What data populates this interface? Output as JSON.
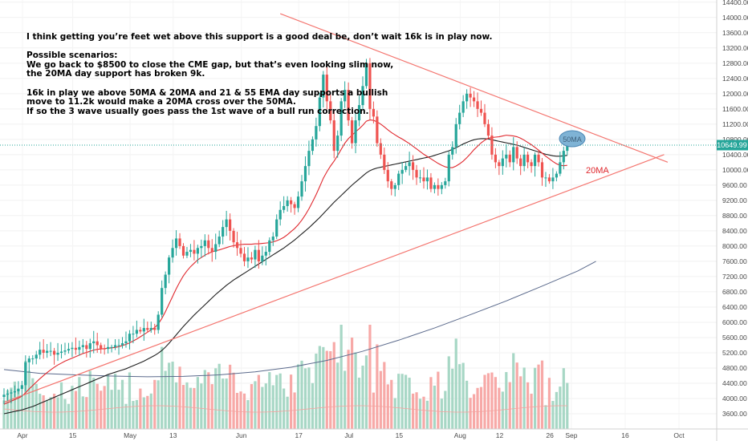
{
  "annotation": {
    "line1": "I think getting you’re feet wet above this support is a good deal be, don’t wait 16k is in play now.",
    "line2": "Possible scenarios:",
    "line3": "We go back to $8500 to close the CME gap, but that’s even looking slim now,",
    "line4": "the 20MA day support has broken 9k.",
    "line5": "16k in play we above 50MA & 20MA and 21 & 55 EMA day supports a bullish",
    "line6": "move to 11.2k would make a 20MA cross over the 50MA.",
    "line7": "If so the 3 wave usually goes pass the 1st wave of a bull run correction."
  },
  "labels": {
    "ma50": "50MA",
    "ma20": "20MA"
  },
  "price_tag": "10649.99",
  "colors": {
    "up": "#26a69a",
    "down": "#ef5350",
    "vol_up": "#a7d7c5",
    "vol_down": "#f7a9a7",
    "ma20": "#e0282e",
    "ma50": "#1f1f1f",
    "ma200": "#5b6a8c",
    "trend": "#f4756f",
    "axis_text": "#4a4a4a",
    "price_tag": "#26a69a",
    "label_fill": "#7fb3d5"
  },
  "chart_data": {
    "type": "candlestick",
    "title": "",
    "y_ticks": [
      3600,
      4000,
      4400,
      4800,
      5200,
      5600,
      6000,
      6400,
      6800,
      7200,
      7600,
      8000,
      8400,
      8800,
      9200,
      9600,
      10000,
      10400,
      10800,
      11200,
      11600,
      12000,
      12400,
      12800,
      13200,
      13600,
      14000,
      14400
    ],
    "y_tick_labels": [
      "3600.00",
      "4000.00",
      "4400.00",
      "4800.00",
      "5200.00",
      "5600.00",
      "6000.00",
      "6400.00",
      "6800.00",
      "7200.00",
      "7600.00",
      "8000.00",
      "8400.00",
      "8800.00",
      "9200.00",
      "9600.00",
      "10000.00",
      "10400.00",
      "10800.00",
      "11200.00",
      "11600.00",
      "12000.00",
      "12400.00",
      "12800.00",
      "13200.00",
      "13600.00",
      "14000.00",
      "14400.00"
    ],
    "x_ticks": [
      {
        "label": "Apr",
        "day": 0
      },
      {
        "label": "15",
        "day": 14
      },
      {
        "label": "May",
        "day": 30
      },
      {
        "label": "13",
        "day": 42
      },
      {
        "label": "Jun",
        "day": 61
      },
      {
        "label": "17",
        "day": 77
      },
      {
        "label": "Jul",
        "day": 91
      },
      {
        "label": "15",
        "day": 105
      },
      {
        "label": "Aug",
        "day": 122
      },
      {
        "label": "12",
        "day": 133
      },
      {
        "label": "26",
        "day": 147
      },
      {
        "label": "Sep",
        "day": 153
      },
      {
        "label": "16",
        "day": 168
      },
      {
        "label": "Oct",
        "day": 183
      }
    ],
    "close": [
      4100,
      4130,
      4160,
      4190,
      4250,
      4350,
      4950,
      5050,
      5050,
      5150,
      5280,
      5200,
      5250,
      5250,
      5150,
      5200,
      5230,
      5260,
      5300,
      5330,
      5280,
      5350,
      5400,
      5300,
      5450,
      5500,
      5400,
      5310,
      5300,
      5350,
      5350,
      5400,
      5400,
      5450,
      5500,
      5700,
      5700,
      5800,
      5760,
      5850,
      5800,
      5850,
      5800,
      6200,
      6900,
      7250,
      7700,
      7950,
      8200,
      8000,
      7750,
      7850,
      7900,
      7800,
      7950,
      8000,
      8150,
      7950,
      7850,
      8050,
      8250,
      8500,
      8700,
      8400,
      8100,
      7950,
      7800,
      7600,
      7700,
      7650,
      7900,
      7600,
      7750,
      7850,
      8150,
      8250,
      8700,
      8950,
      9050,
      9200,
      9100,
      9000,
      9300,
      9700,
      10100,
      10500,
      10800,
      11150,
      11900,
      12500,
      11800,
      11300,
      10500,
      10900,
      11800,
      12100,
      11300,
      10700,
      11300,
      11700,
      12200,
      12800,
      11600,
      11400,
      10700,
      10400,
      10000,
      9700,
      9500,
      9600,
      9900,
      10000,
      10100,
      10200,
      10000,
      9800,
      9800,
      9700,
      9800,
      9500,
      9600,
      9500,
      9600,
      9700,
      10400,
      10600,
      11200,
      11500,
      11800,
      12000,
      11900,
      11800,
      11600,
      11500,
      11200,
      10900,
      10400,
      10200,
      10100,
      10300,
      10400,
      10200,
      10600,
      10300,
      10100,
      10400,
      10200,
      10100,
      10400,
      10200,
      9800,
      9800,
      9700,
      9800,
      9900,
      10200,
      10500,
      10650
    ],
    "ma20": [
      3850,
      3890,
      3930,
      3970,
      4010,
      4060,
      4150,
      4250,
      4340,
      4430,
      4520,
      4600,
      4680,
      4750,
      4820,
      4880,
      4930,
      4980,
      5020,
      5060,
      5100,
      5140,
      5180,
      5210,
      5240,
      5270,
      5290,
      5300,
      5310,
      5320,
      5330,
      5340,
      5360,
      5390,
      5420,
      5460,
      5510,
      5560,
      5620,
      5680,
      5740,
      5800,
      5860,
      5960,
      6100,
      6280,
      6480,
      6680,
      6880,
      7060,
      7220,
      7350,
      7460,
      7550,
      7640,
      7700,
      7760,
      7810,
      7850,
      7880,
      7900,
      7930,
      7960,
      7990,
      8010,
      8030,
      8040,
      8050,
      8050,
      8050,
      8060,
      8060,
      8070,
      8080,
      8090,
      8110,
      8140,
      8180,
      8230,
      8300,
      8380,
      8460,
      8560,
      8680,
      8820,
      8980,
      9160,
      9350,
      9560,
      9780,
      9950,
      10100,
      10230,
      10380,
      10540,
      10700,
      10820,
      10910,
      11000,
      11080,
      11170,
      11280,
      11310,
      11300,
      11260,
      11200,
      11130,
      11050,
      10980,
      10920,
      10860,
      10810,
      10750,
      10690,
      10620,
      10550,
      10480,
      10410,
      10350,
      10290,
      10230,
      10170,
      10120,
      10080,
      10060,
      10060,
      10100,
      10160,
      10230,
      10320,
      10420,
      10530,
      10620,
      10710,
      10780,
      10830,
      10850,
      10860,
      10870,
      10890,
      10910,
      10900,
      10890,
      10870,
      10830,
      10780,
      10720,
      10660,
      10590,
      10520,
      10440,
      10360,
      10290,
      10220,
      10160,
      10120,
      10110,
      10120
    ],
    "ma50": [
      3600,
      3620,
      3640,
      3660,
      3680,
      3700,
      3730,
      3760,
      3790,
      3830,
      3870,
      3910,
      3950,
      3990,
      4030,
      4070,
      4110,
      4150,
      4190,
      4230,
      4270,
      4310,
      4350,
      4390,
      4430,
      4470,
      4510,
      4550,
      4590,
      4630,
      4660,
      4690,
      4720,
      4750,
      4780,
      4820,
      4860,
      4900,
      4940,
      4980,
      5030,
      5080,
      5130,
      5190,
      5260,
      5350,
      5450,
      5560,
      5670,
      5780,
      5890,
      5990,
      6090,
      6190,
      6280,
      6370,
      6460,
      6550,
      6640,
      6730,
      6810,
      6890,
      6970,
      7040,
      7110,
      7170,
      7230,
      7290,
      7350,
      7410,
      7470,
      7530,
      7590,
      7650,
      7710,
      7770,
      7830,
      7890,
      7950,
      8020,
      8090,
      8160,
      8240,
      8320,
      8400,
      8480,
      8570,
      8660,
      8750,
      8850,
      8950,
      9050,
      9150,
      9240,
      9330,
      9420,
      9510,
      9600,
      9680,
      9760,
      9840,
      9920,
      9980,
      10020,
      10050,
      10070,
      10090,
      10110,
      10130,
      10150,
      10170,
      10190,
      10210,
      10230,
      10250,
      10270,
      10290,
      10310,
      10330,
      10350,
      10380,
      10410,
      10440,
      10470,
      10500,
      10540,
      10580,
      10630,
      10680,
      10720,
      10760,
      10790,
      10810,
      10820,
      10820,
      10810,
      10790,
      10770,
      10750,
      10730,
      10710,
      10690,
      10670,
      10650,
      10620,
      10590,
      10560,
      10530,
      10500,
      10470,
      10440,
      10410,
      10390,
      10370,
      10360,
      10360,
      10370,
      10380
    ],
    "ma200_points": [
      [
        0,
        4760
      ],
      [
        10,
        4660
      ],
      [
        20,
        4620
      ],
      [
        30,
        4590
      ],
      [
        40,
        4570
      ],
      [
        50,
        4580
      ],
      [
        60,
        4620
      ],
      [
        70,
        4700
      ],
      [
        80,
        4820
      ],
      [
        90,
        5000
      ],
      [
        100,
        5240
      ],
      [
        110,
        5530
      ],
      [
        120,
        5850
      ],
      [
        130,
        6200
      ],
      [
        140,
        6560
      ],
      [
        150,
        6950
      ],
      [
        160,
        7350
      ],
      [
        165,
        7600
      ]
    ],
    "trendlines": {
      "upper": [
        [
          77,
          14100
        ],
        [
          185,
          10200
        ]
      ],
      "lower": [
        [
          0,
          3900
        ],
        [
          184,
          10400
        ]
      ]
    },
    "current_price": 10649.99,
    "volume_max": 6000
  }
}
